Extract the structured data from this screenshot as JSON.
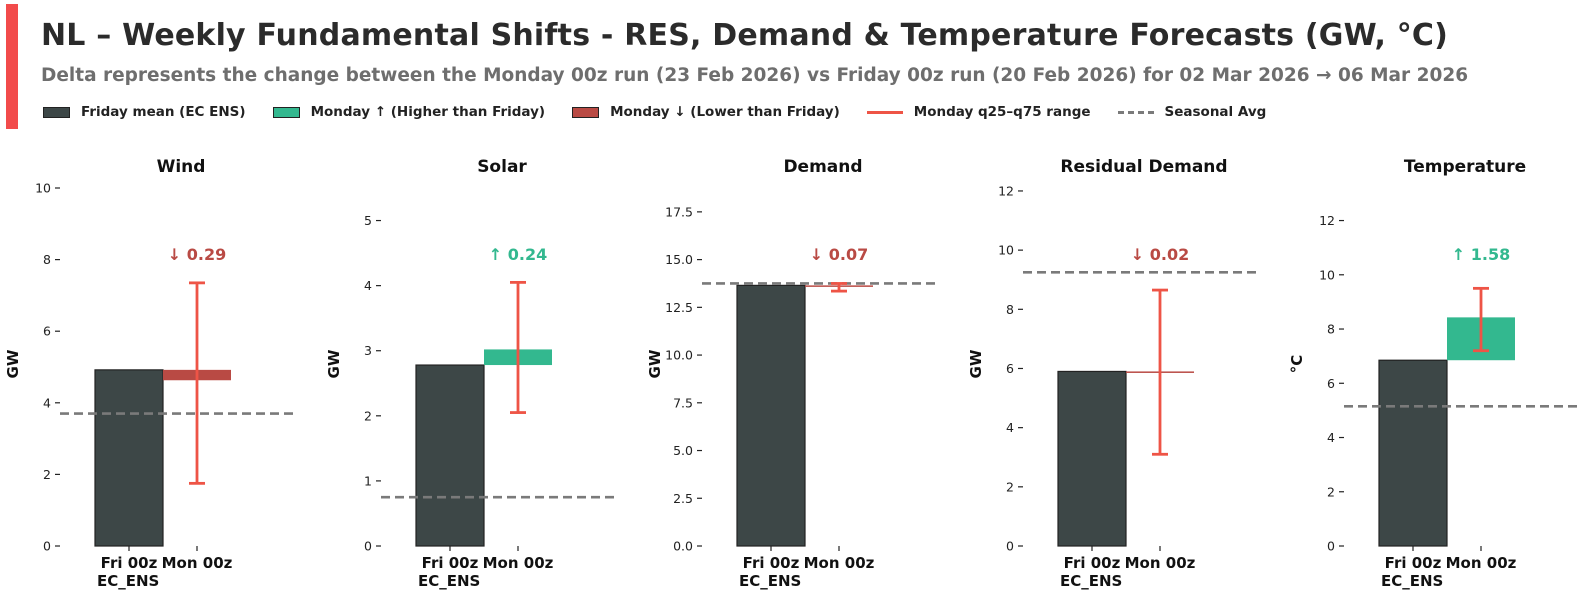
{
  "header": {
    "title": "NL – Weekly Fundamental Shifts - RES, Demand & Temperature Forecasts (GW, °C)",
    "subtitle": "Delta represents the change between the Monday 00z run (23 Feb 2026) vs Friday 00z run (20 Feb 2026) for 02 Mar 2026 → 06 Mar 2026"
  },
  "colors": {
    "accent": "#f24b4b",
    "friday": "#3d4747",
    "up": "#33b88f",
    "down": "#b94a44",
    "range": "#ee5446",
    "seasonal": "#7a7a7a"
  },
  "legend": [
    {
      "label": "Friday mean (EC ENS)",
      "kind": "box",
      "color": "#3d4747"
    },
    {
      "label": "Monday ↑ (Higher than Friday)",
      "kind": "box",
      "color": "#33b88f"
    },
    {
      "label": "Monday ↓ (Lower than Friday)",
      "kind": "box",
      "color": "#b94a44"
    },
    {
      "label": "Monday q25–q75 range",
      "kind": "line",
      "color": "#ee5446"
    },
    {
      "label": "Seasonal Avg",
      "kind": "dash",
      "color": "#7a7a7a"
    }
  ],
  "chart_data": [
    {
      "type": "bar",
      "title": "Wind",
      "ylabel": "GW",
      "categories": [
        "Fri 00z\nEC_ENS",
        "Mon 00z"
      ],
      "friday": 4.92,
      "monday": 4.63,
      "delta": -0.29,
      "delta_label": "↓ 0.29",
      "q25": 1.75,
      "q75": 7.35,
      "seasonal": 3.7,
      "ylim": [
        0,
        10
      ],
      "yticks": [
        0,
        2,
        4,
        6,
        8,
        10
      ],
      "tick_labels": [
        "0",
        "2",
        "4",
        "6",
        "8",
        "10"
      ]
    },
    {
      "type": "bar",
      "title": "Solar",
      "ylabel": "GW",
      "categories": [
        "Fri 00z\nEC_ENS",
        "Mon 00z"
      ],
      "friday": 2.78,
      "monday": 3.02,
      "delta": 0.24,
      "delta_label": "↑ 0.24",
      "q25": 2.05,
      "q75": 4.05,
      "seasonal": 0.75,
      "ylim": [
        0,
        5.5
      ],
      "yticks": [
        0,
        1,
        2,
        3,
        4,
        5
      ],
      "tick_labels": [
        "0",
        "1",
        "2",
        "3",
        "4",
        "5"
      ]
    },
    {
      "type": "bar",
      "title": "Demand",
      "ylabel": "GW",
      "categories": [
        "Fri 00z\nEC_ENS",
        "Mon 00z"
      ],
      "friday": 13.65,
      "monday": 13.58,
      "delta": -0.07,
      "delta_label": "↓ 0.07",
      "q25": 13.35,
      "q75": 13.75,
      "seasonal": 13.75,
      "ylim": [
        0,
        18.75
      ],
      "yticks": [
        0,
        2.5,
        5,
        7.5,
        10,
        12.5,
        15,
        17.5
      ],
      "tick_labels": [
        "0.0",
        "2.5",
        "5.0",
        "7.5",
        "10.0",
        "12.5",
        "15.0",
        "17.5"
      ]
    },
    {
      "type": "bar",
      "title": "Residual Demand",
      "ylabel": "GW",
      "categories": [
        "Fri 00z\nEC_ENS",
        "Mon 00z"
      ],
      "friday": 5.9,
      "monday": 5.88,
      "delta": -0.02,
      "delta_label": "↓ 0.02",
      "q25": 3.1,
      "q75": 8.65,
      "seasonal": 9.25,
      "ylim": [
        0,
        12.1
      ],
      "yticks": [
        0,
        2,
        4,
        6,
        8,
        10,
        12
      ],
      "tick_labels": [
        "0",
        "2",
        "4",
        "6",
        "8",
        "10",
        "12"
      ]
    },
    {
      "type": "bar",
      "title": "Temperature",
      "ylabel": "°C",
      "categories": [
        "Fri 00z\nEC_ENS",
        "Mon 00z"
      ],
      "friday": 6.85,
      "monday": 8.43,
      "delta": 1.58,
      "delta_label": "↑ 1.58",
      "q25": 7.2,
      "q75": 9.5,
      "seasonal": 5.15,
      "ylim": [
        0,
        13.2
      ],
      "yticks": [
        0,
        2,
        4,
        6,
        8,
        10,
        12
      ],
      "tick_labels": [
        "0",
        "2",
        "4",
        "6",
        "8",
        "10",
        "12"
      ]
    }
  ]
}
